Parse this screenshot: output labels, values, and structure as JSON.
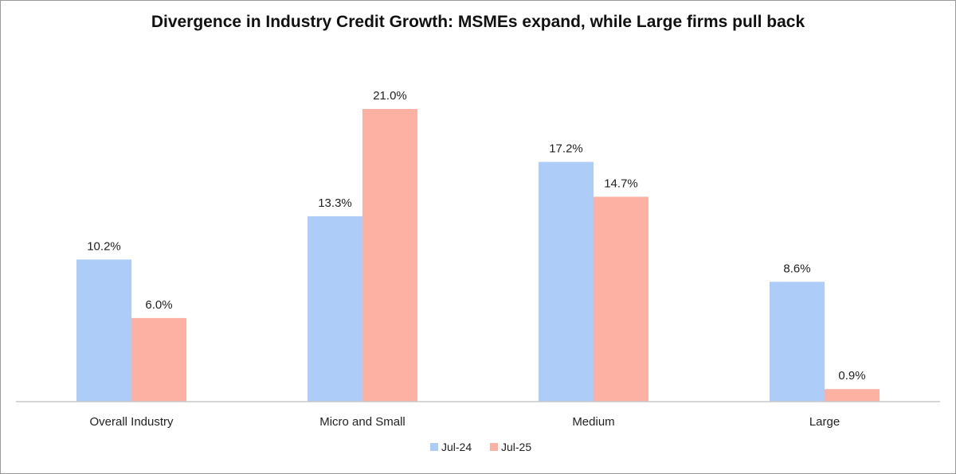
{
  "chart_data": {
    "type": "bar",
    "title": "Divergence in Industry Credit Growth: MSMEs expand, while Large firms pull back",
    "categories": [
      "Overall Industry",
      "Micro and Small",
      "Medium",
      "Large"
    ],
    "series": [
      {
        "name": "Jul-24",
        "color": "#adcdf8",
        "values": [
          10.2,
          13.3,
          17.2,
          8.6
        ],
        "labels": [
          "10.2%",
          "13.3%",
          "17.2%",
          "8.6%"
        ]
      },
      {
        "name": "Jul-25",
        "color": "#fcb1a2",
        "values": [
          6.0,
          21.0,
          14.7,
          0.9
        ],
        "labels": [
          "6.0%",
          "21.0%",
          "14.7%",
          "0.9%"
        ]
      }
    ],
    "xlabel": "",
    "ylabel": "",
    "ylim": [
      0,
      21.0
    ],
    "grid": false,
    "legend": "bottom-center"
  }
}
